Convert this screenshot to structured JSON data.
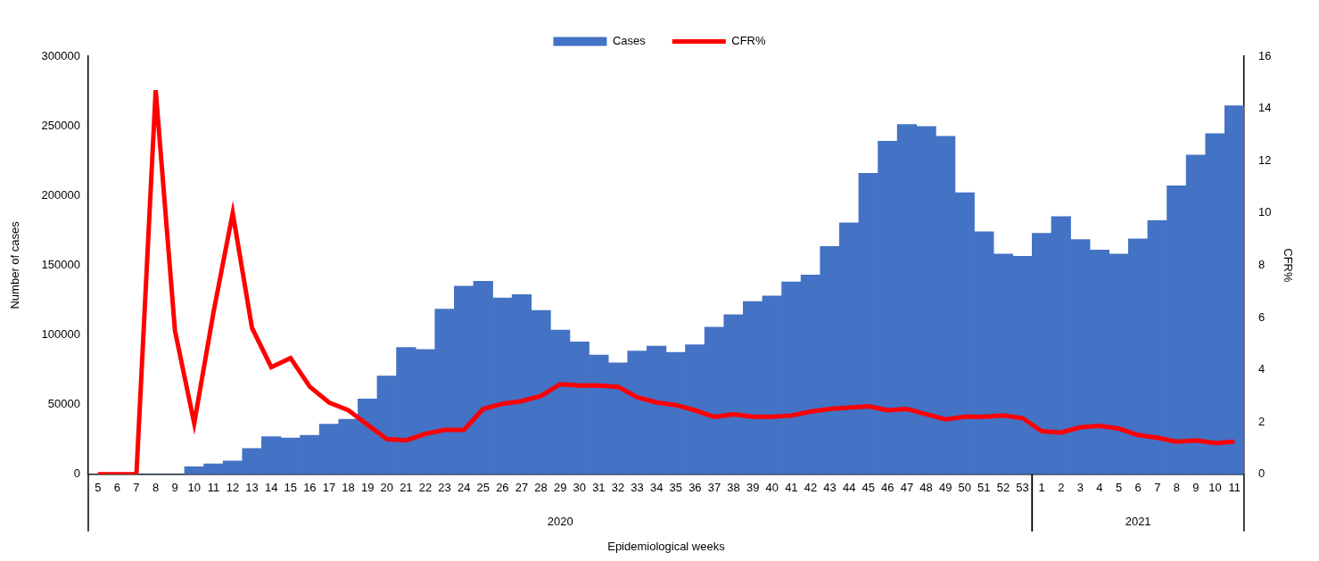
{
  "chart_data": {
    "type": "bar",
    "x_label": "Epidemiological weeks",
    "y_label": "Number of cases",
    "y2_label": "CFR%",
    "categories": [
      "5",
      "6",
      "7",
      "8",
      "9",
      "10",
      "11",
      "12",
      "13",
      "14",
      "15",
      "16",
      "17",
      "18",
      "19",
      "20",
      "21",
      "22",
      "23",
      "24",
      "25",
      "26",
      "27",
      "28",
      "29",
      "30",
      "31",
      "32",
      "33",
      "34",
      "35",
      "36",
      "37",
      "38",
      "39",
      "40",
      "41",
      "42",
      "43",
      "44",
      "45",
      "46",
      "47",
      "48",
      "49",
      "50",
      "51",
      "52",
      "53",
      "1",
      "2",
      "3",
      "4",
      "5",
      "6",
      "7",
      "8",
      "9",
      "10",
      "11"
    ],
    "category_groups": [
      "2020",
      "2020",
      "2020",
      "2020",
      "2020",
      "2020",
      "2020",
      "2020",
      "2020",
      "2020",
      "2020",
      "2020",
      "2020",
      "2020",
      "2020",
      "2020",
      "2020",
      "2020",
      "2020",
      "2020",
      "2020",
      "2020",
      "2020",
      "2020",
      "2020",
      "2020",
      "2020",
      "2020",
      "2020",
      "2020",
      "2020",
      "2020",
      "2020",
      "2020",
      "2020",
      "2020",
      "2020",
      "2020",
      "2020",
      "2020",
      "2020",
      "2020",
      "2020",
      "2020",
      "2020",
      "2020",
      "2020",
      "2020",
      "2020",
      "2021",
      "2021",
      "2021",
      "2021",
      "2021",
      "2021",
      "2021",
      "2021",
      "2021",
      "2021",
      "2021"
    ],
    "series": [
      {
        "name": "Cases",
        "type": "bar",
        "color": "#4472c4",
        "values": [
          0,
          0,
          0,
          0,
          0,
          5500,
          7500,
          9500,
          18500,
          27000,
          26000,
          28000,
          36000,
          39500,
          54000,
          70500,
          91000,
          89500,
          118500,
          135000,
          138500,
          126500,
          129000,
          117500,
          103500,
          95000,
          85500,
          80000,
          88500,
          92000,
          87500,
          93000,
          105500,
          114500,
          124000,
          128000,
          138000,
          143000,
          163500,
          180500,
          216000,
          239000,
          251000,
          249500,
          242500,
          202000,
          174000,
          158000,
          156500,
          173000,
          185000,
          168500,
          161000,
          158000,
          169000,
          182000,
          207000,
          229000,
          244500,
          264500
        ]
      },
      {
        "name": "CFR%",
        "type": "line",
        "color": "#ff0000",
        "axis": "y2",
        "values": [
          0,
          0,
          0,
          14.7,
          5.5,
          1.95,
          6.2,
          10.0,
          5.6,
          4.1,
          4.45,
          3.35,
          2.75,
          2.45,
          1.9,
          1.35,
          1.3,
          1.55,
          1.7,
          1.7,
          2.5,
          2.7,
          2.8,
          3.0,
          3.45,
          3.4,
          3.4,
          3.35,
          2.95,
          2.75,
          2.65,
          2.45,
          2.2,
          2.3,
          2.2,
          2.2,
          2.25,
          2.4,
          2.5,
          2.55,
          2.6,
          2.45,
          2.5,
          2.3,
          2.1,
          2.2,
          2.2,
          2.25,
          2.15,
          1.65,
          1.6,
          1.8,
          1.85,
          1.75,
          1.5,
          1.4,
          1.25,
          1.3,
          1.2,
          1.25
        ]
      }
    ],
    "ylim": [
      0,
      300000
    ],
    "yticks": [
      0,
      50000,
      100000,
      150000,
      200000,
      250000,
      300000
    ],
    "y2lim": [
      0,
      16
    ],
    "y2ticks": [
      0,
      2,
      4,
      6,
      8,
      10,
      12,
      14,
      16
    ],
    "grid": false,
    "legend": "top"
  }
}
